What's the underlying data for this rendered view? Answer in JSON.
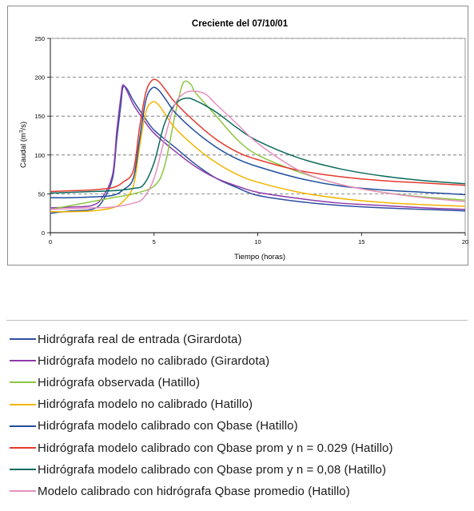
{
  "chart_data": {
    "type": "line",
    "title": "Creciente del 07/10/01",
    "xlabel": "Tiempo (horas)",
    "ylabel": "Caudal (m³/s)",
    "xlim": [
      0,
      20
    ],
    "ylim": [
      0,
      250
    ],
    "xticks": [
      0,
      5,
      10,
      15,
      20
    ],
    "yticks": [
      0,
      50,
      100,
      150,
      200,
      250
    ],
    "grid": "horizontal dashed",
    "legend_placement": "below",
    "series": [
      {
        "name": "Hidrógrafa real de entrada (Girardota)",
        "color": "#2f4fa3",
        "x": [
          0,
          1,
          2,
          2.5,
          3,
          3.2,
          3.4,
          3.5,
          3.7,
          4,
          4.5,
          5,
          6,
          7,
          8,
          9,
          10,
          12,
          14,
          16,
          18,
          20
        ],
        "y": [
          25,
          28,
          30,
          40,
          70,
          120,
          165,
          187,
          185,
          170,
          150,
          132,
          110,
          88,
          70,
          58,
          48,
          40,
          35,
          32,
          30,
          28
        ]
      },
      {
        "name": "Hidrógrafa modelo no calibrado (Girardota)",
        "color": "#8e3aa8",
        "x": [
          0,
          1,
          2,
          2.5,
          3,
          3.2,
          3.4,
          3.5,
          3.7,
          4,
          4.5,
          5,
          6,
          7,
          8,
          9,
          10,
          12,
          14,
          16,
          18,
          20
        ],
        "y": [
          32,
          33,
          35,
          45,
          75,
          130,
          175,
          190,
          182,
          165,
          145,
          128,
          105,
          85,
          70,
          60,
          52,
          44,
          38,
          35,
          32,
          30
        ]
      },
      {
        "name": "Hidrógrafa observada (Hatillo)",
        "color": "#8cc63f",
        "x": [
          0,
          1,
          2,
          3,
          4,
          5,
          5.5,
          6,
          6.3,
          6.5,
          6.8,
          7,
          8,
          9,
          10,
          12,
          14,
          16,
          18,
          20
        ],
        "y": [
          30,
          35,
          40,
          45,
          50,
          60,
          85,
          150,
          185,
          195,
          190,
          180,
          150,
          120,
          100,
          78,
          62,
          52,
          46,
          42
        ]
      },
      {
        "name": "Hidrógrafa modelo no calibrado (Hatillo)",
        "color": "#f5b400",
        "x": [
          0,
          1,
          2,
          3,
          3.5,
          4,
          4.3,
          4.6,
          4.9,
          5.2,
          5.6,
          6,
          7,
          8,
          9,
          10,
          12,
          14,
          16,
          18,
          20
        ],
        "y": [
          27,
          27,
          28,
          32,
          40,
          60,
          110,
          155,
          168,
          165,
          150,
          135,
          110,
          90,
          75,
          65,
          52,
          44,
          39,
          36,
          34
        ]
      },
      {
        "name": "Hidrógrafa modelo calibrado con Qbase (Hatillo)",
        "color": "#1f4e9c",
        "x": [
          0,
          1,
          2,
          3,
          3.5,
          4,
          4.3,
          4.6,
          4.9,
          5.2,
          5.6,
          6,
          7,
          8,
          9,
          10,
          12,
          14,
          16,
          18,
          20
        ],
        "y": [
          45,
          45,
          46,
          48,
          55,
          70,
          120,
          170,
          186,
          184,
          170,
          155,
          130,
          110,
          95,
          85,
          70,
          60,
          55,
          52,
          49
        ]
      },
      {
        "name": "Hidrógrafa modelo calibrado con Qbase prom y n = 0.029 (Hatillo)",
        "color": "#e53a2f",
        "x": [
          0,
          1,
          2,
          3,
          3.5,
          4,
          4.3,
          4.6,
          4.9,
          5.2,
          5.6,
          6,
          7,
          8,
          9,
          10,
          12,
          14,
          16,
          18,
          20
        ],
        "y": [
          53,
          54,
          55,
          58,
          65,
          80,
          135,
          180,
          196,
          195,
          182,
          168,
          142,
          120,
          104,
          94,
          80,
          72,
          67,
          64,
          61
        ]
      },
      {
        "name": "Hidrógrafa modelo calibrado con Qbase prom y n = 0,08 (Hatillo)",
        "color": "#0c6b5e",
        "x": [
          0,
          1,
          2,
          3,
          4,
          4.5,
          5,
          5.5,
          6,
          6.5,
          7,
          8,
          9,
          10,
          12,
          14,
          16,
          18,
          20
        ],
        "y": [
          51,
          52,
          53,
          54,
          57,
          62,
          90,
          140,
          165,
          173,
          170,
          155,
          135,
          118,
          96,
          82,
          73,
          67,
          63
        ]
      },
      {
        "name": "Modelo calibrado con hidrógrafa Qbase promedio (Hatillo)",
        "color": "#e58fc0",
        "x": [
          0,
          1,
          2,
          3,
          4,
          4.5,
          5,
          5.5,
          6,
          6.5,
          7,
          7.5,
          8,
          9,
          10,
          12,
          14,
          16,
          18,
          20
        ],
        "y": [
          30,
          31,
          32,
          33,
          38,
          45,
          70,
          120,
          165,
          180,
          182,
          178,
          165,
          140,
          115,
          80,
          62,
          52,
          45,
          40
        ]
      }
    ]
  }
}
